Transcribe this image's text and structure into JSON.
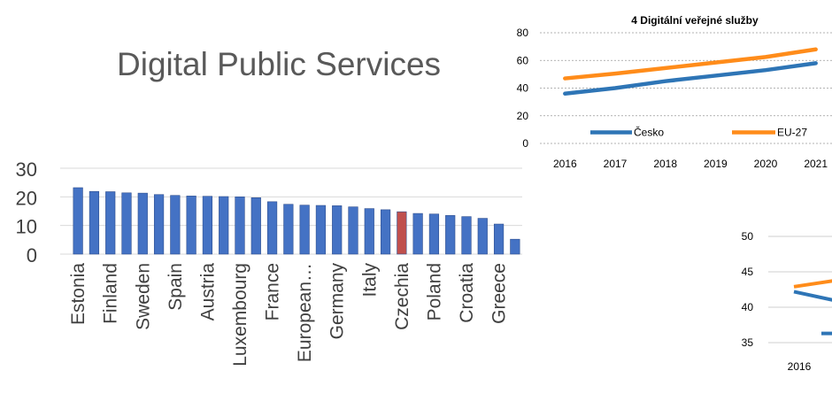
{
  "slide": {
    "title": "Digital Public Services"
  },
  "chart_data": [
    {
      "type": "bar",
      "categories": [
        "Estonia",
        "",
        "Finland",
        "",
        "Sweden",
        "",
        "Spain",
        "",
        "Austria",
        "",
        "Luxembourg",
        "",
        "France",
        "",
        "European…",
        "",
        "Germany",
        "",
        "Italy",
        "",
        "Czechia",
        "",
        "Poland",
        "",
        "Croatia",
        "",
        "Greece",
        ""
      ],
      "values": [
        23.2,
        21.9,
        21.8,
        21.4,
        21.3,
        20.8,
        20.5,
        20.3,
        20.2,
        20.1,
        20.0,
        19.7,
        18.3,
        17.4,
        17.1,
        17.0,
        16.9,
        16.5,
        15.9,
        15.5,
        14.8,
        14.2,
        14.0,
        13.5,
        13.1,
        12.5,
        10.5,
        5.2
      ],
      "highlight_index": 20,
      "colors": {
        "bar": "#4472C4",
        "highlight": "#C0504D"
      },
      "yticks": [
        0,
        10,
        20,
        30
      ],
      "ylim": [
        0,
        30
      ],
      "grid": true
    },
    {
      "type": "line",
      "title": "4 Digitální veřejné služby",
      "x": [
        "2016",
        "2017",
        "2018",
        "2019",
        "2020",
        "2021"
      ],
      "series": [
        {
          "name": "Česko",
          "values": [
            36,
            40,
            45,
            49,
            53,
            58
          ],
          "color": "#2E75B6"
        },
        {
          "name": "EU-27",
          "values": [
            47,
            50.5,
            54.5,
            58.5,
            62.5,
            68
          ],
          "color": "#FF8C1A"
        }
      ],
      "yticks": [
        0,
        20,
        40,
        60,
        80
      ],
      "ylim": [
        0,
        80
      ],
      "legend": "bottom-inside",
      "grid": true
    },
    {
      "type": "line",
      "x": [
        "2016"
      ],
      "series": [
        {
          "values": [
            42.2
          ],
          "color": "#2E75B6"
        },
        {
          "values": [
            42.9
          ],
          "color": "#FF8C1A"
        }
      ],
      "yticks": [
        35,
        40,
        45,
        50
      ],
      "ylim": [
        35,
        50
      ],
      "grid": true,
      "note": "partially visible, cropped at right edge"
    }
  ]
}
